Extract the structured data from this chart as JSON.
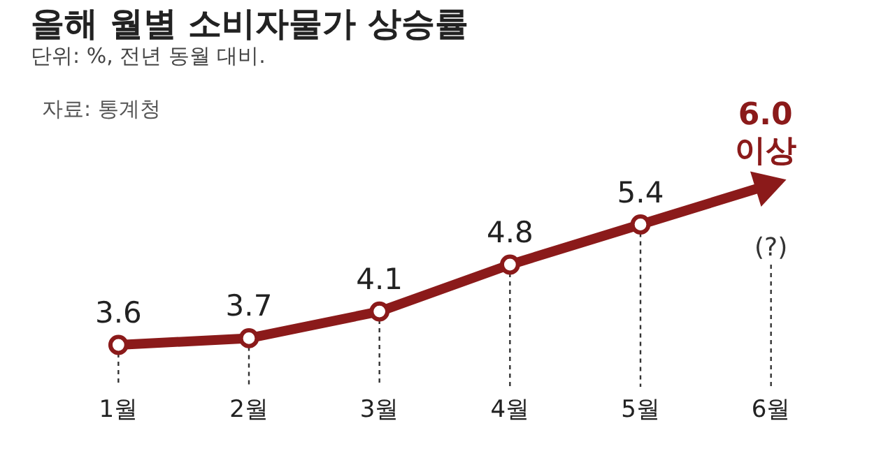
{
  "chart_data": {
    "type": "line",
    "title": "올해 월별 소비자물가 상승률",
    "subtitle": "단위: %, 전년 동월 대비.",
    "annotations": [
      "자료: 통계청",
      "(?)"
    ],
    "categories": [
      "1월",
      "2월",
      "3월",
      "4월",
      "5월",
      "6월"
    ],
    "series": [
      {
        "color": "#8b1a1a",
        "values": [
          3.6,
          3.7,
          4.1,
          4.8,
          5.4,
          6.0
        ],
        "value_labels": [
          "3.6",
          "3.7",
          "4.1",
          "4.8",
          "5.4",
          "6.0 이상"
        ]
      }
    ],
    "tick_labels": "x",
    "grid": "x",
    "marker": "circle",
    "line_style": "solid"
  }
}
